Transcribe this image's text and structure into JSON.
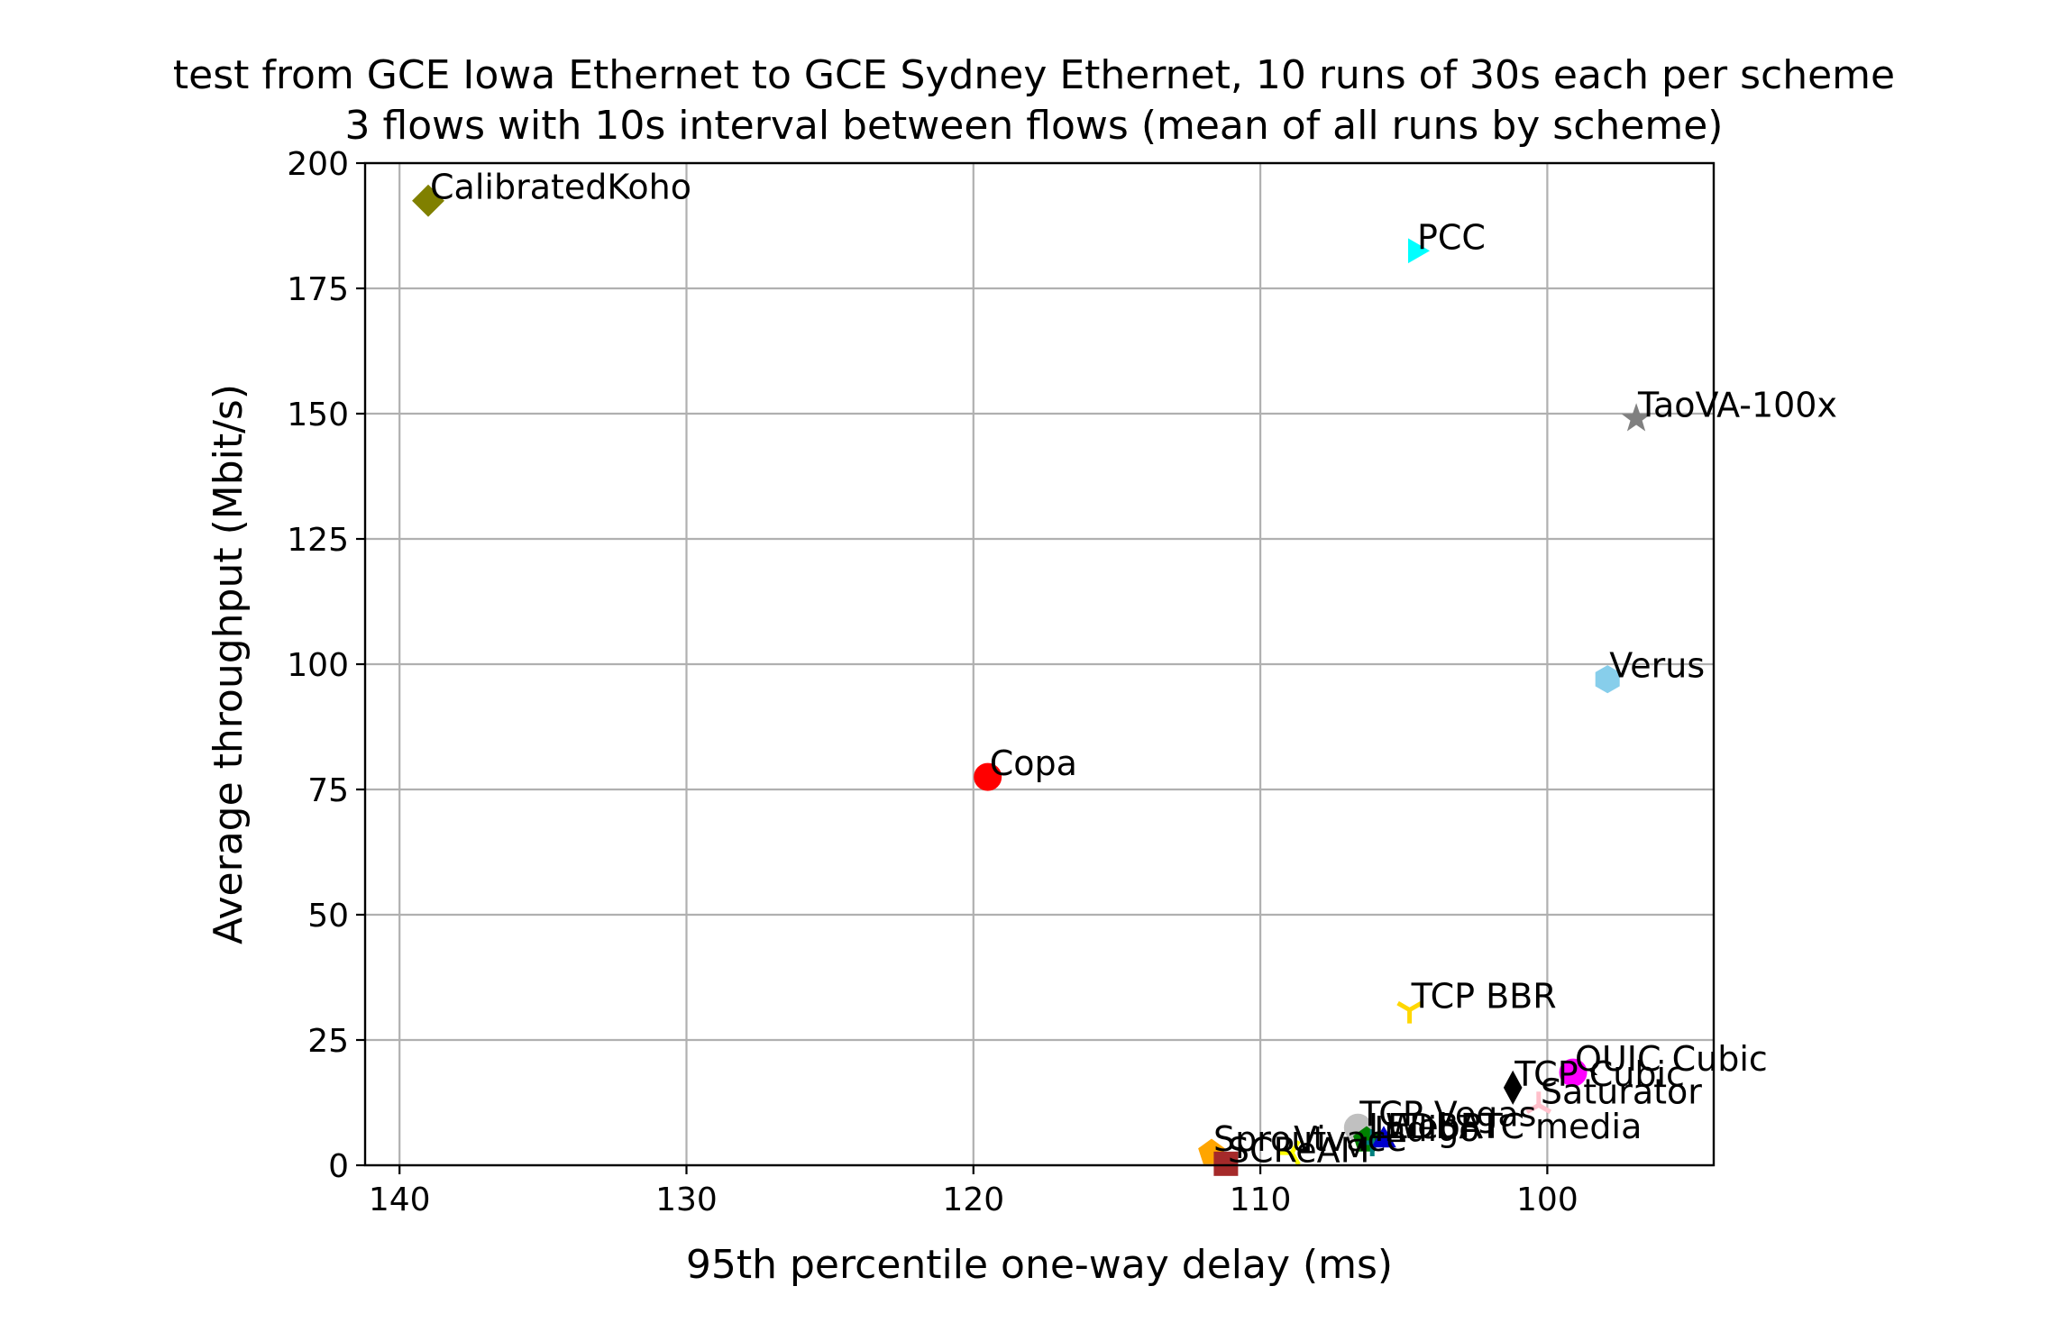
{
  "chart_data": {
    "type": "scatter",
    "title": [
      "test from GCE Iowa Ethernet to GCE Sydney Ethernet, 10 runs of 30s each per scheme",
      "3 flows with 10s interval between flows (mean of all runs by scheme)"
    ],
    "xlabel": "95th percentile one-way delay (ms)",
    "ylabel": "Average throughput (Mbit/s)",
    "xlim": [
      141.2,
      94.2
    ],
    "ylim": [
      0,
      200
    ],
    "x_ticks": [
      140,
      130,
      120,
      110,
      100
    ],
    "y_ticks": [
      0,
      25,
      50,
      75,
      100,
      125,
      150,
      175,
      200
    ],
    "x_tick_labels": [
      "140",
      "130",
      "120",
      "110",
      "100"
    ],
    "y_tick_labels": [
      "0",
      "25",
      "50",
      "75",
      "100",
      "125",
      "150",
      "175",
      "200"
    ],
    "grid": true,
    "points": [
      {
        "name": "CalibratedKoho",
        "x": 139.0,
        "y": 192.5,
        "marker": "diamond",
        "color": "#808000"
      },
      {
        "name": "PCC",
        "x": 104.6,
        "y": 182.5,
        "marker": "triangle-right",
        "color": "#00ffff"
      },
      {
        "name": "TaoVA-100x",
        "x": 96.9,
        "y": 149.0,
        "marker": "star",
        "color": "#808080"
      },
      {
        "name": "Verus",
        "x": 97.9,
        "y": 97.0,
        "marker": "hexagon",
        "color": "#87ceeb"
      },
      {
        "name": "Copa",
        "x": 119.5,
        "y": 77.5,
        "marker": "circle",
        "color": "#ff0000"
      },
      {
        "name": "TCP BBR",
        "x": 104.8,
        "y": 31.0,
        "marker": "tri-down",
        "color": "#ffd700"
      },
      {
        "name": "QUIC Cubic",
        "x": 99.1,
        "y": 18.5,
        "marker": "circle",
        "color": "#ff00ff"
      },
      {
        "name": "TCP Cubic",
        "x": 101.2,
        "y": 15.5,
        "marker": "thin-diamond",
        "color": "#000000"
      },
      {
        "name": "Saturator",
        "x": 100.3,
        "y": 12.0,
        "marker": "tri-up",
        "color": "#ffc0cb"
      },
      {
        "name": "TCP Vegas",
        "x": 106.6,
        "y": 7.5,
        "marker": "circle",
        "color": "#c0c0c0"
      },
      {
        "name": "LEDBAT",
        "x": 106.3,
        "y": 5.0,
        "marker": "pentagon",
        "color": "#008000"
      },
      {
        "name": "Indigo",
        "x": 106.1,
        "y": 4.5,
        "marker": "plus",
        "color": "#008080"
      },
      {
        "name": "WebRTC media",
        "x": 105.7,
        "y": 5.0,
        "marker": "triangle-up",
        "color": "#0000cd"
      },
      {
        "name": "Sprout",
        "x": 111.7,
        "y": 2.5,
        "marker": "pentagon",
        "color": "#ffa500"
      },
      {
        "name": "Vivace",
        "x": 108.9,
        "y": 2.5,
        "marker": "tri-left",
        "color": "#ffff00"
      },
      {
        "name": "SCReAM",
        "x": 111.2,
        "y": 0.3,
        "marker": "square",
        "color": "#a52a2a"
      }
    ]
  }
}
